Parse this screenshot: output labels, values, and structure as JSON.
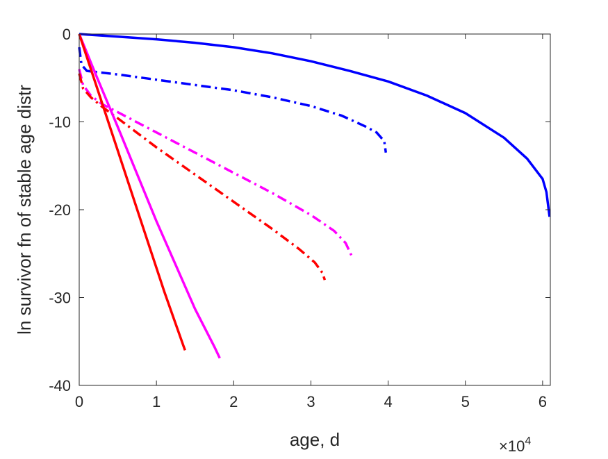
{
  "chart_data": {
    "type": "line",
    "xlabel": "age, d",
    "ylabel": "ln survivor fn of stable age distr",
    "x_exponent_label": "×10",
    "x_exponent_power": "4",
    "xlim": [
      0,
      61000
    ],
    "ylim": [
      -40,
      0
    ],
    "x_ticks": [
      0,
      10000,
      20000,
      30000,
      40000,
      50000,
      60000
    ],
    "x_tick_labels": [
      "0",
      "1",
      "2",
      "3",
      "4",
      "5",
      "6"
    ],
    "y_ticks": [
      0,
      -10,
      -20,
      -30,
      -40
    ],
    "y_tick_labels": [
      "0",
      "-10",
      "-20",
      "-30",
      "-40"
    ],
    "grid": false,
    "legend": "none",
    "series": [
      {
        "color": "#0000ff",
        "style": "solid",
        "points": [
          [
            0,
            0
          ],
          [
            5000,
            -0.3
          ],
          [
            10000,
            -0.6
          ],
          [
            15000,
            -1.0
          ],
          [
            20000,
            -1.5
          ],
          [
            25000,
            -2.2
          ],
          [
            30000,
            -3.1
          ],
          [
            35000,
            -4.2
          ],
          [
            40000,
            -5.4
          ],
          [
            45000,
            -7.0
          ],
          [
            50000,
            -9.0
          ],
          [
            55000,
            -11.8
          ],
          [
            58000,
            -14.2
          ],
          [
            60000,
            -16.5
          ],
          [
            60500,
            -18.0
          ],
          [
            60900,
            -20.8
          ]
        ]
      },
      {
        "color": "#0000ff",
        "style": "dashdot",
        "points": [
          [
            0,
            -1.5
          ],
          [
            300,
            -3.5
          ],
          [
            1000,
            -4.2
          ],
          [
            5000,
            -4.6
          ],
          [
            10000,
            -5.2
          ],
          [
            15000,
            -5.8
          ],
          [
            20000,
            -6.4
          ],
          [
            25000,
            -7.2
          ],
          [
            30000,
            -8.2
          ],
          [
            34000,
            -9.3
          ],
          [
            37000,
            -10.5
          ],
          [
            38500,
            -11.2
          ],
          [
            39500,
            -12.2
          ],
          [
            39700,
            -13.5
          ]
        ]
      },
      {
        "color": "#ff00ff",
        "style": "dashdot",
        "points": [
          [
            0,
            -4.0
          ],
          [
            500,
            -5.8
          ],
          [
            1500,
            -7.0
          ],
          [
            3000,
            -8.0
          ],
          [
            5000,
            -8.9
          ],
          [
            10000,
            -11.2
          ],
          [
            15000,
            -13.5
          ],
          [
            20000,
            -15.8
          ],
          [
            25000,
            -18.1
          ],
          [
            30000,
            -20.6
          ],
          [
            33000,
            -22.4
          ],
          [
            34500,
            -23.8
          ],
          [
            35400,
            -25.5
          ]
        ]
      },
      {
        "color": "#ff0000",
        "style": "dashdot",
        "points": [
          [
            0,
            -4.5
          ],
          [
            500,
            -6.2
          ],
          [
            1500,
            -7.2
          ],
          [
            3000,
            -8.3
          ],
          [
            5000,
            -9.6
          ],
          [
            10000,
            -12.9
          ],
          [
            15000,
            -16.0
          ],
          [
            20000,
            -19.1
          ],
          [
            25000,
            -22.2
          ],
          [
            28500,
            -24.5
          ],
          [
            30500,
            -26.0
          ],
          [
            31500,
            -27.2
          ],
          [
            31800,
            -28.0
          ]
        ]
      },
      {
        "color": "#ff00ff",
        "style": "solid",
        "points": [
          [
            0,
            0
          ],
          [
            2000,
            -4.3
          ],
          [
            5000,
            -10.6
          ],
          [
            10000,
            -21.3
          ],
          [
            15000,
            -31.3
          ],
          [
            17500,
            -35.6
          ],
          [
            18200,
            -36.9
          ]
        ]
      },
      {
        "color": "#ff0000",
        "style": "solid",
        "points": [
          [
            0,
            0
          ],
          [
            2000,
            -5.3
          ],
          [
            5000,
            -13.3
          ],
          [
            8000,
            -21.3
          ],
          [
            11000,
            -29.3
          ],
          [
            13500,
            -35.5
          ],
          [
            13700,
            -36.0
          ]
        ]
      }
    ]
  }
}
